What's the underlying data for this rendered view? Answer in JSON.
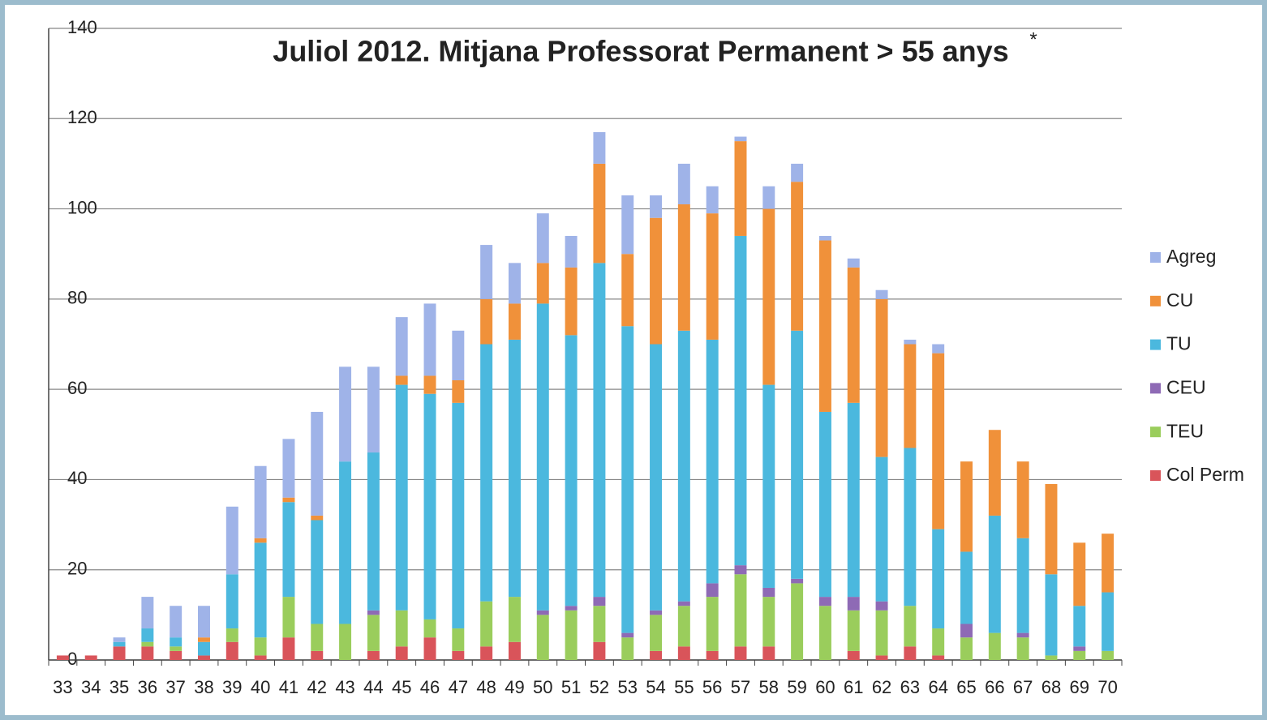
{
  "chart_data": {
    "type": "stacked_bar",
    "title": "Juliol 2012. Mitjana Professorat Permanent > 55 anys",
    "annotation": "*",
    "categories": [
      "33",
      "34",
      "35",
      "36",
      "37",
      "38",
      "39",
      "40",
      "41",
      "42",
      "43",
      "44",
      "45",
      "46",
      "47",
      "48",
      "49",
      "50",
      "51",
      "52",
      "53",
      "54",
      "55",
      "56",
      "57",
      "58",
      "59",
      "60",
      "61",
      "62",
      "63",
      "64",
      "65",
      "66",
      "67",
      "68",
      "69",
      "70"
    ],
    "series": [
      {
        "name": "Col Perm",
        "color": "#d9545a",
        "values": [
          1,
          1,
          3,
          3,
          2,
          1,
          4,
          1,
          5,
          2,
          0,
          2,
          3,
          5,
          2,
          3,
          4,
          0,
          0,
          4,
          0,
          2,
          3,
          2,
          3,
          3,
          0,
          0,
          2,
          1,
          3,
          1,
          0,
          0,
          0,
          0,
          0,
          0
        ]
      },
      {
        "name": "TEU",
        "color": "#9acd5c",
        "values": [
          0,
          0,
          0,
          1,
          1,
          0,
          3,
          4,
          9,
          6,
          8,
          8,
          8,
          4,
          5,
          10,
          10,
          10,
          11,
          8,
          5,
          8,
          9,
          12,
          16,
          11,
          17,
          12,
          9,
          10,
          9,
          6,
          5,
          6,
          5,
          1,
          2,
          2
        ]
      },
      {
        "name": "CEU",
        "color": "#8e6ab5",
        "values": [
          0,
          0,
          0,
          0,
          0,
          0,
          0,
          0,
          0,
          0,
          0,
          1,
          0,
          0,
          0,
          0,
          0,
          1,
          1,
          2,
          1,
          1,
          1,
          3,
          2,
          2,
          1,
          2,
          3,
          2,
          0,
          0,
          3,
          0,
          1,
          0,
          1,
          0
        ]
      },
      {
        "name": "TU",
        "color": "#4bb8de",
        "values": [
          0,
          0,
          1,
          3,
          2,
          3,
          12,
          21,
          21,
          23,
          36,
          35,
          50,
          50,
          50,
          57,
          57,
          68,
          60,
          74,
          68,
          59,
          60,
          54,
          73,
          45,
          55,
          41,
          43,
          32,
          35,
          22,
          16,
          26,
          21,
          18,
          9,
          13
        ]
      },
      {
        "name": "CU",
        "color": "#f0913a",
        "values": [
          0,
          0,
          0,
          0,
          0,
          1,
          0,
          1,
          1,
          1,
          0,
          0,
          2,
          4,
          5,
          10,
          8,
          9,
          15,
          22,
          16,
          28,
          28,
          28,
          21,
          39,
          33,
          38,
          30,
          35,
          23,
          39,
          20,
          19,
          17,
          20,
          14,
          13
        ]
      },
      {
        "name": "Agreg",
        "color": "#9fb3e8",
        "values": [
          0,
          0,
          1,
          7,
          7,
          7,
          15,
          16,
          13,
          23,
          21,
          19,
          13,
          16,
          11,
          12,
          9,
          11,
          7,
          7,
          13,
          5,
          9,
          6,
          1,
          5,
          4,
          1,
          2,
          2,
          1,
          2,
          0,
          0,
          0,
          0,
          0,
          0
        ]
      }
    ],
    "ylim": [
      0,
      140
    ],
    "yticks": [
      0,
      20,
      40,
      60,
      80,
      100,
      120,
      140
    ],
    "grid": true,
    "legend": "right"
  }
}
